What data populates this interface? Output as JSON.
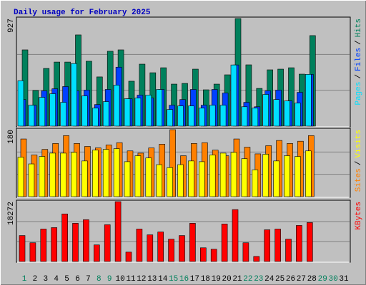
{
  "title": "Daily usage for February 2025",
  "legend_separator": "/",
  "chart_data": [
    {
      "type": "bar",
      "ylim": [
        0,
        927
      ],
      "yticks": [
        927
      ],
      "series": [
        {
          "name": "Pages",
          "color": "#00e0ff",
          "values": [
            391,
            180,
            248,
            279,
            205,
            539,
            260,
            155,
            211,
            353,
            236,
            242,
            267,
            316,
            143,
            174,
            174,
            155,
            180,
            180,
            527,
            167,
            155,
            273,
            229,
            217,
            198,
            446,
            null,
            null,
            null
          ]
        },
        {
          "name": "Files",
          "color": "#0040ff",
          "values": [
            229,
            180,
            304,
            322,
            341,
            304,
            310,
            186,
            316,
            508,
            236,
            267,
            242,
            316,
            180,
            229,
            316,
            180,
            316,
            285,
            527,
            205,
            167,
            304,
            310,
            217,
            291,
            446,
            null,
            null,
            null
          ]
        },
        {
          "name": "Hits",
          "color": "#00805c",
          "values": [
            657,
            307,
            497,
            552,
            552,
            786,
            559,
            424,
            645,
            657,
            387,
            534,
            460,
            503,
            362,
            368,
            491,
            313,
            362,
            442,
            927,
            528,
            325,
            485,
            491,
            503,
            448,
            780,
            null,
            null,
            null
          ]
        }
      ]
    },
    {
      "type": "bar",
      "ylim": [
        0,
        180
      ],
      "yticks": [
        180
      ],
      "series": [
        {
          "name": "Sites",
          "color": "#ff8000",
          "values": [
            155,
            112,
            127,
            143,
            164,
            143,
            135,
            131,
            139,
            145,
            123,
            117,
            131,
            141,
            180,
            110,
            143,
            145,
            125,
            110,
            155,
            133,
            115,
            137,
            151,
            143,
            149,
            164,
            null,
            null,
            null
          ]
        },
        {
          "name": "Visits",
          "color": "#ffff00",
          "values": [
            106,
            88,
            108,
            117,
            117,
            119,
            96,
            125,
            127,
            129,
            94,
            110,
            104,
            86,
            78,
            86,
            96,
            94,
            112,
            117,
            119,
            102,
            72,
            114,
            96,
            110,
            108,
            123,
            null,
            null,
            null
          ]
        }
      ]
    },
    {
      "type": "bar",
      "ylim": [
        0,
        18272
      ],
      "yticks": [
        18272
      ],
      "categories": [
        "1",
        "2",
        "3",
        "4",
        "5",
        "6",
        "7",
        "8",
        "9",
        "10",
        "11",
        "12",
        "13",
        "14",
        "15",
        "16",
        "17",
        "18",
        "19",
        "20",
        "21",
        "22",
        "23",
        "24",
        "25",
        "26",
        "27",
        "28",
        "29",
        "30",
        "31"
      ],
      "category_colors": [
        "#00805c",
        "#000000",
        "#000000",
        "#000000",
        "#000000",
        "#000000",
        "#000000",
        "#00805c",
        "#00805c",
        "#000000",
        "#000000",
        "#000000",
        "#000000",
        "#000000",
        "#00805c",
        "#00805c",
        "#000000",
        "#000000",
        "#000000",
        "#000000",
        "#000000",
        "#00805c",
        "#00805c",
        "#000000",
        "#000000",
        "#000000",
        "#000000",
        "#000000",
        "#00805c",
        "#00805c",
        "#000000"
      ],
      "series": [
        {
          "name": "KBytes",
          "color": "#ff0000",
          "values": [
            7920,
            5720,
            9900,
            10340,
            14520,
            11660,
            12760,
            5060,
            11220,
            18272,
            2860,
            9900,
            8140,
            9020,
            6820,
            7920,
            11660,
            4180,
            3740,
            11440,
            15840,
            5720,
            1540,
            9680,
            9900,
            6820,
            11000,
            11880,
            null,
            null,
            null
          ]
        }
      ]
    }
  ]
}
